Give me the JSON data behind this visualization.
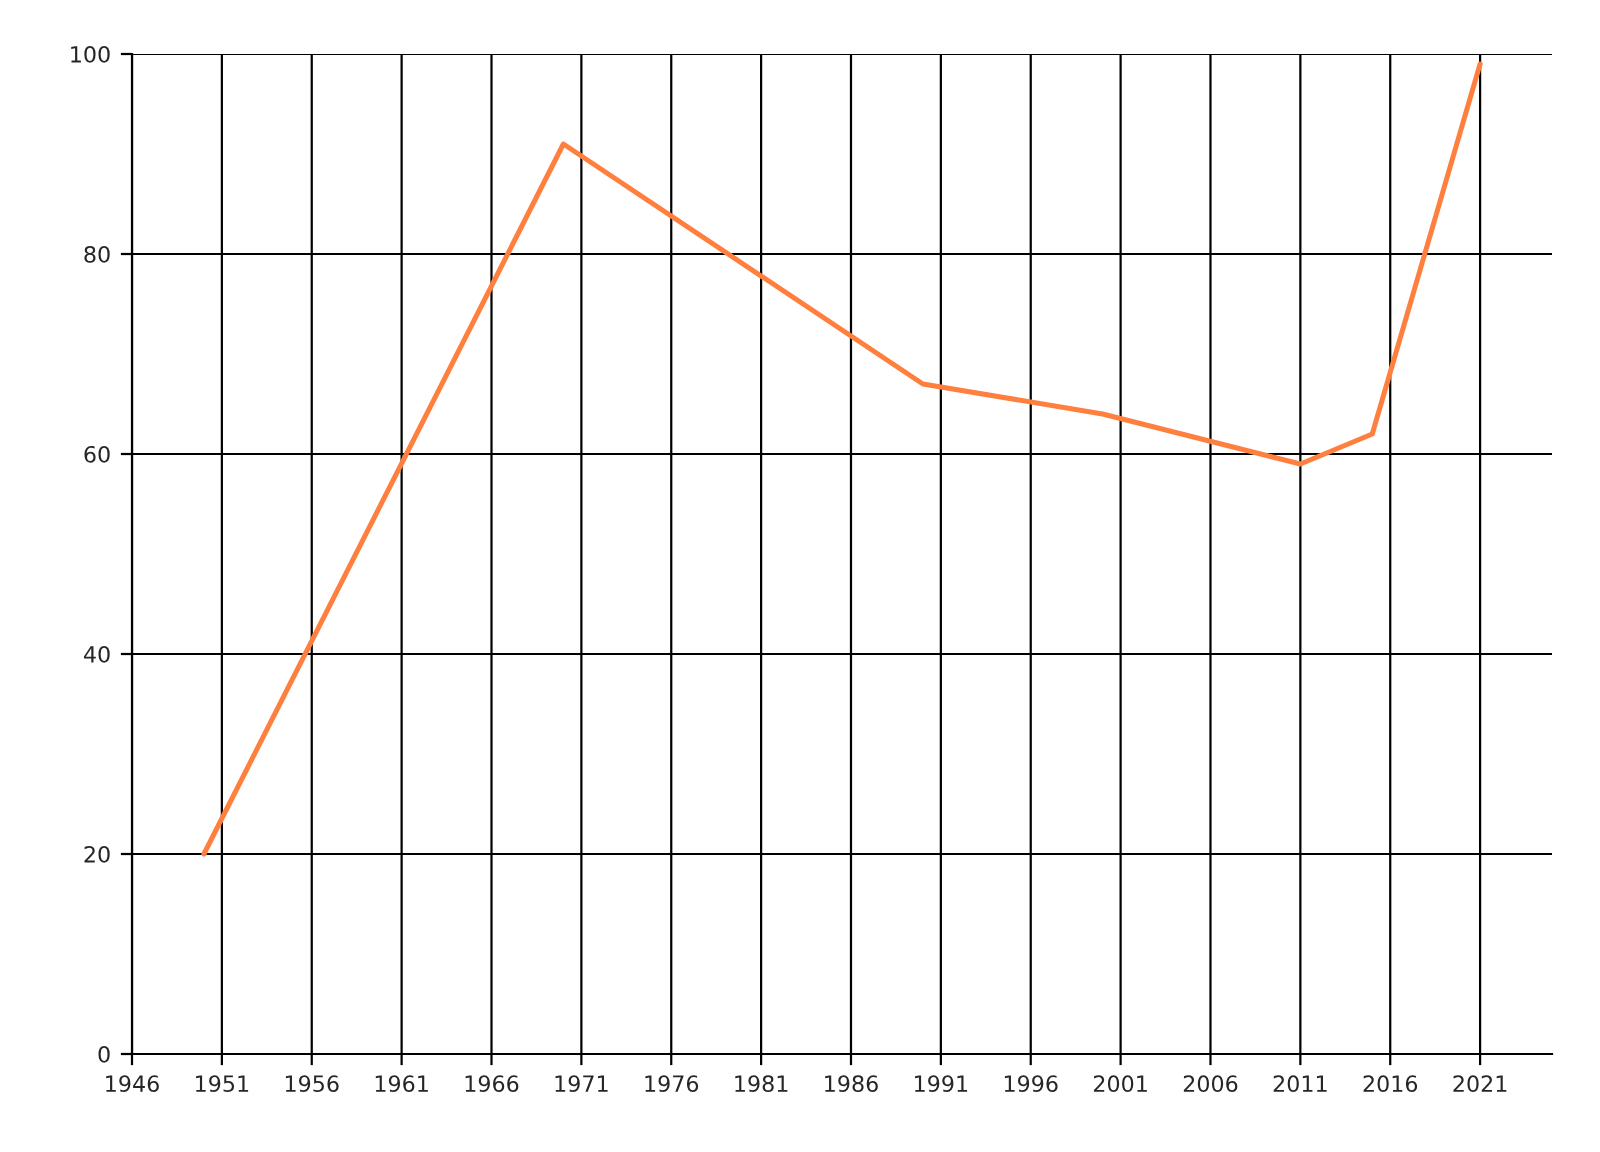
{
  "chart_data": {
    "type": "line",
    "x": [
      1950,
      1970,
      1990,
      2000,
      2011,
      2015,
      2021
    ],
    "series": [
      {
        "color": "#ff7f3f",
        "values": [
          20,
          91,
          67,
          64,
          59,
          62,
          99
        ]
      }
    ],
    "xlim": [
      1946,
      2025
    ],
    "xticks": [
      1946,
      1951,
      1956,
      1961,
      1966,
      1971,
      1976,
      1981,
      1986,
      1991,
      1996,
      2001,
      2006,
      2011,
      2016,
      2021
    ],
    "ylim": [
      0,
      100
    ],
    "yticks": [
      0,
      20,
      40,
      60,
      80,
      100
    ],
    "grid": true,
    "legend": false,
    "marker": "none",
    "line_style": "solid"
  }
}
